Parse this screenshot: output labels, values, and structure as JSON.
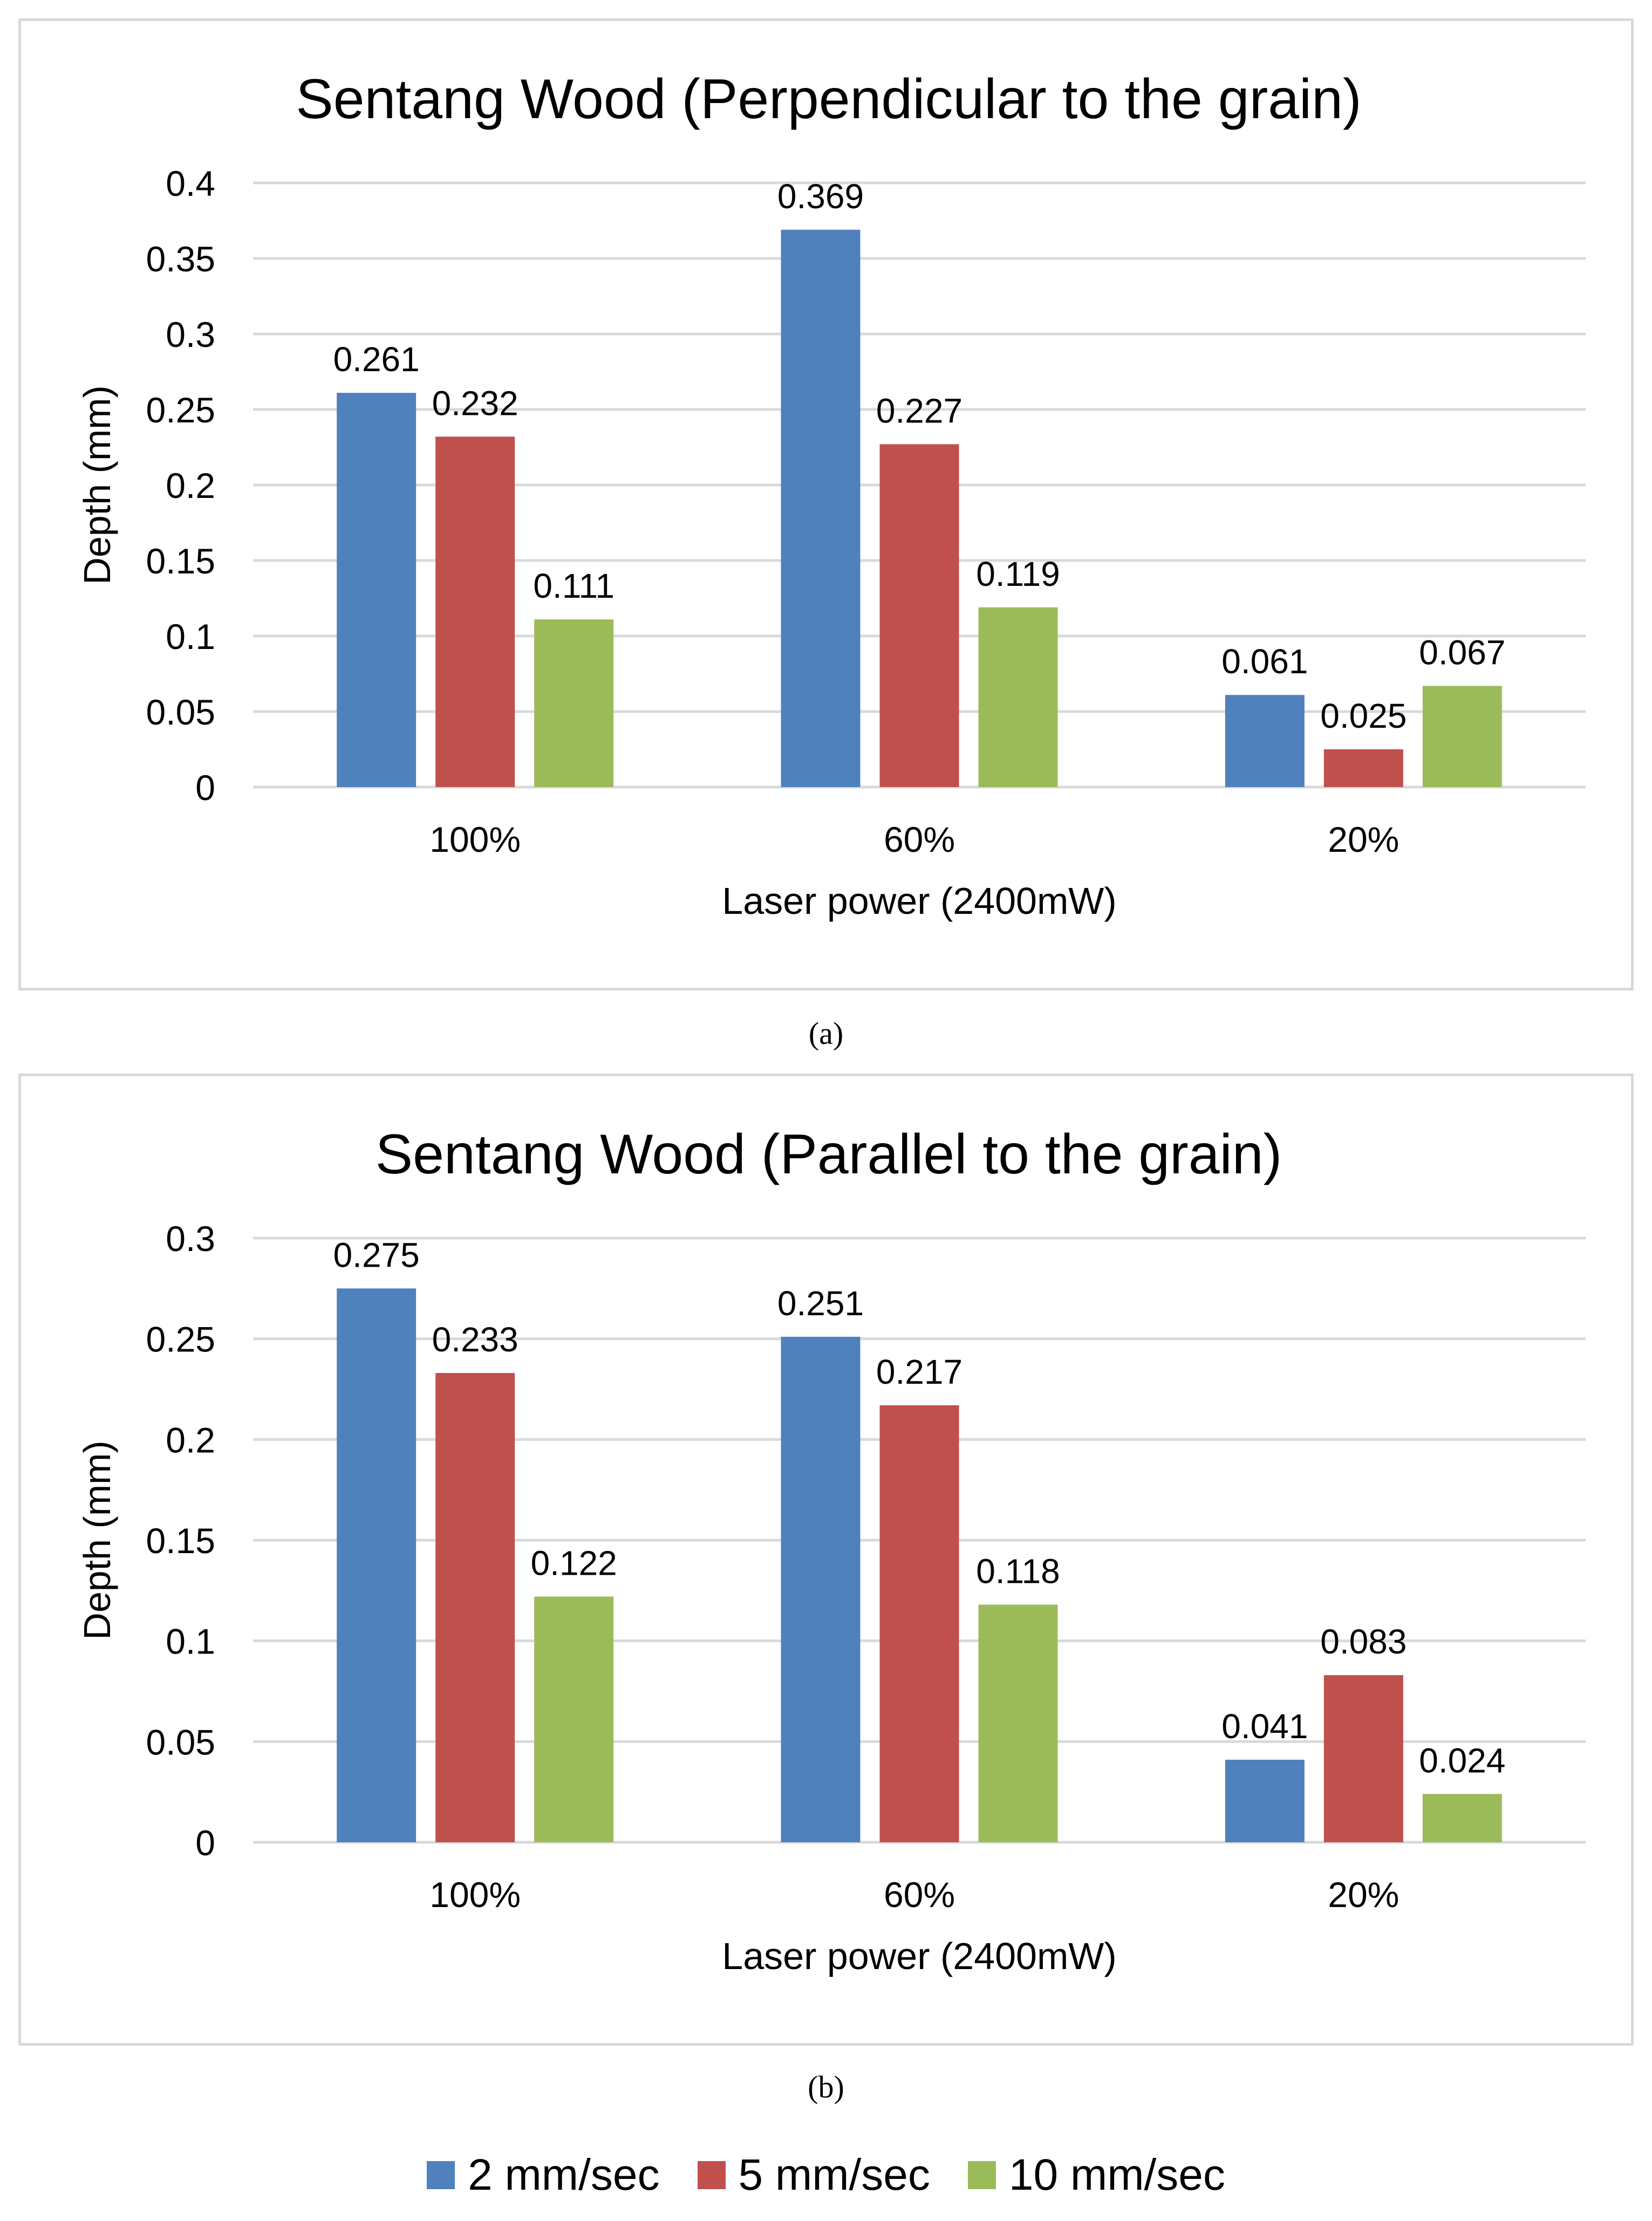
{
  "chart_data": [
    {
      "type": "bar",
      "title": "Sentang Wood (Perpendicular to the grain)",
      "xlabel": "Laser power (2400mW)",
      "ylabel": "Depth (mm)",
      "categories": [
        "100%",
        "60%",
        "20%"
      ],
      "ylim": [
        0,
        0.4
      ],
      "yticks": [
        0,
        0.05,
        0.1,
        0.15,
        0.2,
        0.25,
        0.3,
        0.35,
        0.4
      ],
      "ytick_labels": [
        "0",
        "0.05",
        "0.1",
        "0.15",
        "0.2",
        "0.25",
        "0.3",
        "0.35",
        "0.4"
      ],
      "series": [
        {
          "name": "2 mm/sec",
          "values": [
            0.261,
            0.369,
            0.061
          ],
          "labels": [
            "0.261",
            "0.369",
            "0.061"
          ]
        },
        {
          "name": "5 mm/sec",
          "values": [
            0.232,
            0.227,
            0.025
          ],
          "labels": [
            "0.232",
            "0.227",
            "0.025"
          ]
        },
        {
          "name": "10 mm/sec",
          "values": [
            0.111,
            0.119,
            0.067
          ],
          "labels": [
            "0.111",
            "0.119",
            "0.067"
          ]
        }
      ],
      "grid": true
    },
    {
      "type": "bar",
      "title": "Sentang Wood (Parallel to the grain)",
      "xlabel": "Laser power (2400mW)",
      "ylabel": "Depth (mm)",
      "categories": [
        "100%",
        "60%",
        "20%"
      ],
      "ylim": [
        0,
        0.3
      ],
      "yticks": [
        0,
        0.05,
        0.1,
        0.15,
        0.2,
        0.25,
        0.3
      ],
      "ytick_labels": [
        "0",
        "0.05",
        "0.1",
        "0.15",
        "0.2",
        "0.25",
        "0.3"
      ],
      "series": [
        {
          "name": "2 mm/sec",
          "values": [
            0.275,
            0.251,
            0.041
          ],
          "labels": [
            "0.275",
            "0.251",
            "0.041"
          ]
        },
        {
          "name": "5 mm/sec",
          "values": [
            0.233,
            0.217,
            0.083
          ],
          "labels": [
            "0.233",
            "0.217",
            "0.083"
          ]
        },
        {
          "name": "10 mm/sec",
          "values": [
            0.122,
            0.118,
            0.024
          ],
          "labels": [
            "0.122",
            "0.118",
            "0.024"
          ]
        }
      ],
      "grid": true
    }
  ],
  "captions": {
    "a": "(a)",
    "b": "(b)"
  },
  "legend": [
    {
      "label": "2 mm/sec",
      "color": "#4f81bd"
    },
    {
      "label": "5 mm/sec",
      "color": "#c0504d"
    },
    {
      "label": "10 mm/sec",
      "color": "#9bbb59"
    }
  ],
  "colors": {
    "series": [
      "#4f81bd",
      "#c0504d",
      "#9bbb59"
    ],
    "grid": "#d9d9d9"
  }
}
